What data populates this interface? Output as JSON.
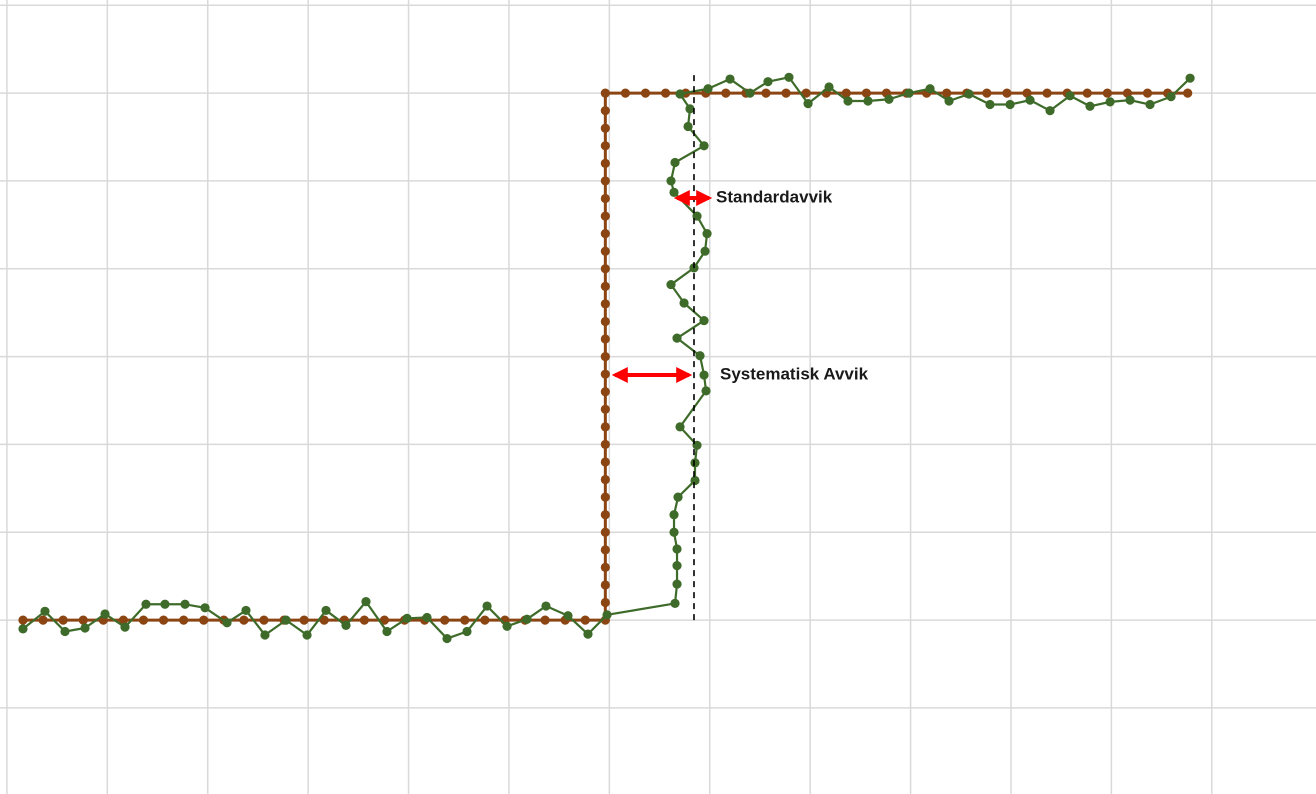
{
  "chart_data": {
    "type": "line",
    "xlim": [
      -2.29,
      128.78
    ],
    "ylim": [
      -1.98,
      7.06
    ],
    "xticks": [
      -1.6,
      8.4,
      18.4,
      28.4,
      38.4,
      48.4,
      58.4,
      68.4,
      78.4,
      88.4,
      98.4,
      108.4,
      118.4
    ],
    "yticks": [
      -1,
      0,
      1,
      2,
      3,
      4,
      5,
      6,
      7
    ],
    "grid": true,
    "tick_labels": false,
    "series": [
      {
        "color": "#8b4513",
        "x": [
          0,
          2,
          4,
          6,
          8,
          10,
          12,
          14,
          16,
          18,
          20,
          22,
          24,
          26,
          28,
          30,
          32,
          34,
          36,
          38,
          40,
          42,
          44,
          46,
          48,
          50,
          52,
          54,
          56,
          58,
          58,
          58,
          58,
          58,
          58,
          58,
          58,
          58,
          58,
          58,
          58,
          58,
          58,
          58,
          58,
          58,
          58,
          58,
          58,
          58,
          58,
          58,
          58,
          58,
          58,
          58,
          58,
          58,
          58,
          58,
          60,
          62,
          64,
          66,
          68,
          70,
          72,
          74,
          76,
          78,
          80,
          82,
          84,
          86,
          88,
          90,
          92,
          94,
          96,
          98,
          100,
          102,
          104,
          106,
          108,
          110,
          112,
          114,
          116
        ],
        "y": [
          0,
          0,
          0,
          0,
          0,
          0,
          0,
          0,
          0,
          0,
          0,
          0,
          0,
          0,
          0,
          0,
          0,
          0,
          0,
          0,
          0,
          0,
          0,
          0,
          0,
          0,
          0,
          0,
          0,
          0,
          0.2,
          0.4,
          0.6,
          0.8,
          1,
          1.2,
          1.4,
          1.6,
          1.8,
          2,
          2.2,
          2.4,
          2.6,
          2.8,
          3,
          3.2,
          3.4,
          3.6,
          3.8,
          4,
          4.2,
          4.4,
          4.6,
          4.8,
          5,
          5.2,
          5.4,
          5.6,
          5.8,
          6,
          6,
          6,
          6,
          6,
          6,
          6,
          6,
          6,
          6,
          6,
          6,
          6,
          6,
          6,
          6,
          6,
          6,
          6,
          6,
          6,
          6,
          6,
          6,
          6,
          6,
          6,
          6,
          6,
          6
        ]
      },
      {
        "color": "#3e6b2a",
        "x": [
          0,
          2.19,
          4.18,
          6.18,
          8.17,
          10.16,
          12.25,
          14.14,
          16.14,
          18.13,
          20.32,
          22.21,
          24.1,
          26.2,
          28.29,
          30.18,
          32.17,
          34.16,
          36.25,
          38.25,
          40.24,
          42.23,
          44.22,
          46.22,
          48.21,
          50.2,
          52.09,
          54.28,
          56.27,
          58.17,
          64.94,
          65.14,
          65.14,
          65.14,
          64.84,
          64.84,
          65.24,
          66.93,
          66.93,
          67.13,
          65.44,
          68.03,
          67.83,
          67.43,
          65.14,
          67.83,
          65.84,
          64.54,
          66.83,
          67.93,
          68.13,
          67.13,
          64.84,
          64.54,
          64.94,
          67.83,
          66.24,
          66.43,
          65.44,
          68.23,
          70.42,
          72.41,
          74.2,
          76.29,
          78.19,
          80.28,
          82.17,
          84.16,
          86.25,
          88.25,
          90.34,
          92.23,
          94.22,
          96.31,
          98.31,
          100.3,
          102.29,
          104.28,
          106.27,
          108.27,
          110.26,
          112.25,
          114.34,
          116.24
        ],
        "y": [
          -0.1,
          0.1,
          -0.13,
          -0.09,
          0.07,
          -0.08,
          0.18,
          0.18,
          0.18,
          0.14,
          -0.03,
          0.11,
          -0.17,
          0,
          -0.17,
          0.11,
          -0.06,
          0.21,
          -0.13,
          0.02,
          0.03,
          -0.21,
          -0.13,
          0.16,
          -0.07,
          0.01,
          0.16,
          0.05,
          -0.16,
          0.06,
          0.19,
          0.41,
          0.62,
          0.81,
          1,
          1.2,
          1.4,
          1.59,
          1.79,
          1.99,
          2.2,
          2.61,
          2.79,
          3.01,
          3.21,
          3.41,
          3.61,
          3.82,
          4.01,
          4.2,
          4.4,
          4.6,
          4.87,
          5,
          5.21,
          5.4,
          5.62,
          5.82,
          5.99,
          6.05,
          6.16,
          6,
          6.13,
          6.18,
          5.88,
          6.07,
          5.91,
          5.91,
          5.93,
          6,
          6.05,
          5.91,
          5.99,
          5.87,
          5.87,
          5.92,
          5.8,
          5.97,
          5.85,
          5.9,
          5.92,
          5.87,
          5.96,
          6.17
        ]
      }
    ],
    "mean_line": {
      "x": 66.83,
      "y": [
        0,
        6.21
      ]
    },
    "annotations": [
      {
        "text": "Standardavvik"
      },
      {
        "text": "Systematisk Avvik"
      }
    ]
  }
}
